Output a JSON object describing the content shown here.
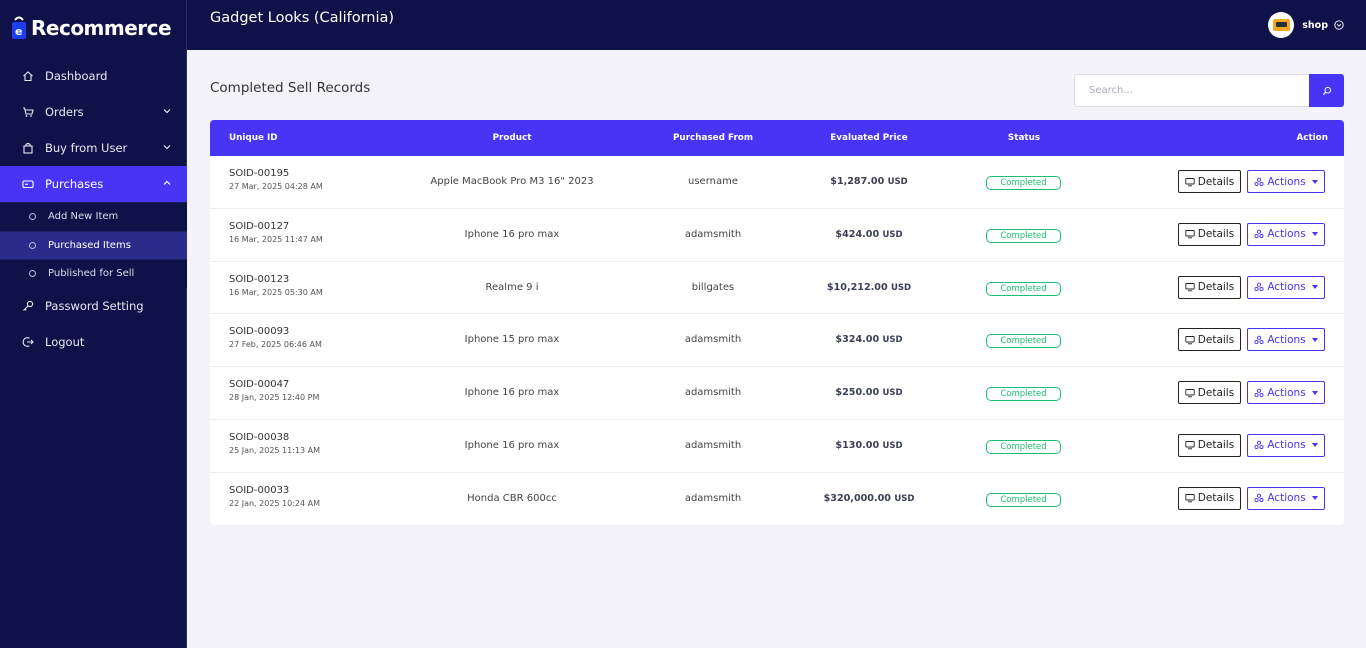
{
  "app": {
    "name": "Recommerce"
  },
  "sidebar": {
    "items": [
      {
        "label": "Dashboard",
        "icon": "home-icon"
      },
      {
        "label": "Orders",
        "icon": "cart-icon"
      },
      {
        "label": "Buy from User",
        "icon": "bag-icon"
      },
      {
        "label": "Purchases",
        "icon": "card-icon",
        "active": true
      },
      {
        "label": "Password Setting",
        "icon": "key-icon"
      },
      {
        "label": "Logout",
        "icon": "logout-icon"
      }
    ],
    "purchases_sub": [
      {
        "label": "Add New Item"
      },
      {
        "label": "Purchased Items",
        "active": true
      },
      {
        "label": "Published for Sell"
      }
    ]
  },
  "header": {
    "store_title": "Gadget Looks (California)",
    "profile_name": "shop"
  },
  "main": {
    "title": "Completed Sell Records",
    "search": {
      "placeholder": "Search...",
      "value": ""
    }
  },
  "table": {
    "columns": [
      "Unique ID",
      "Product",
      "Purchased From",
      "Evaluated Price",
      "Status",
      "Action"
    ],
    "rows": [
      {
        "id": "SOID-00195",
        "date": "27 Mar, 2025 04:28 AM",
        "product": "Apple MacBook Pro M3 16\" 2023",
        "from": "username",
        "price": "$1,287.00",
        "currency": "USD",
        "status": "Completed"
      },
      {
        "id": "SOID-00127",
        "date": "16 Mar, 2025 11:47 AM",
        "product": "Iphone 16 pro max",
        "from": "adamsmith",
        "price": "$424.00",
        "currency": "USD",
        "status": "Completed"
      },
      {
        "id": "SOID-00123",
        "date": "16 Mar, 2025 05:30 AM",
        "product": "Realme 9 i",
        "from": "billgates",
        "price": "$10,212.00",
        "currency": "USD",
        "status": "Completed"
      },
      {
        "id": "SOID-00093",
        "date": "27 Feb, 2025 06:46 AM",
        "product": "Iphone 15 pro max",
        "from": "adamsmith",
        "price": "$324.00",
        "currency": "USD",
        "status": "Completed"
      },
      {
        "id": "SOID-00047",
        "date": "28 Jan, 2025 12:40 PM",
        "product": "Iphone 16 pro max",
        "from": "adamsmith",
        "price": "$250.00",
        "currency": "USD",
        "status": "Completed"
      },
      {
        "id": "SOID-00038",
        "date": "25 Jan, 2025 11:13 AM",
        "product": "Iphone 16 pro max",
        "from": "adamsmith",
        "price": "$130.00",
        "currency": "USD",
        "status": "Completed"
      },
      {
        "id": "SOID-00033",
        "date": "22 Jan, 2025 10:24 AM",
        "product": "Honda CBR 600cc",
        "from": "adamsmith",
        "price": "$320,000.00",
        "currency": "USD",
        "status": "Completed"
      }
    ],
    "details_label": "Details",
    "actions_label": "Actions"
  },
  "colors": {
    "sidebar_bg": "#0e1248",
    "accent": "#4834f5",
    "success": "#1dbf73",
    "page_bg": "#f3f3f9"
  }
}
